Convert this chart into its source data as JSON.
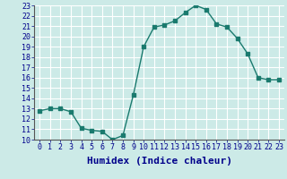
{
  "x": [
    0,
    1,
    2,
    3,
    4,
    5,
    6,
    7,
    8,
    9,
    10,
    11,
    12,
    13,
    14,
    15,
    16,
    17,
    18,
    19,
    20,
    21,
    22,
    23
  ],
  "y": [
    12.8,
    13.0,
    13.0,
    12.7,
    11.1,
    10.9,
    10.8,
    10.0,
    10.4,
    14.3,
    19.0,
    20.9,
    21.1,
    21.5,
    22.3,
    23.0,
    22.6,
    21.2,
    20.9,
    19.8,
    18.3,
    16.0,
    15.8,
    15.8
  ],
  "line_color": "#1a7a6e",
  "bg_color": "#cceae7",
  "grid_color": "#ffffff",
  "xlabel": "Humidex (Indice chaleur)",
  "xlim": [
    -0.5,
    23.5
  ],
  "ylim": [
    10,
    23
  ],
  "yticks": [
    10,
    11,
    12,
    13,
    14,
    15,
    16,
    17,
    18,
    19,
    20,
    21,
    22,
    23
  ],
  "xticks": [
    0,
    1,
    2,
    3,
    4,
    5,
    6,
    7,
    8,
    9,
    10,
    11,
    12,
    13,
    14,
    15,
    16,
    17,
    18,
    19,
    20,
    21,
    22,
    23
  ],
  "marker": "s",
  "markersize": 2.5,
  "linewidth": 1.0,
  "xlabel_fontsize": 8,
  "tick_fontsize": 6,
  "xlabel_color": "#00008b",
  "axis_label_color": "#00008b"
}
